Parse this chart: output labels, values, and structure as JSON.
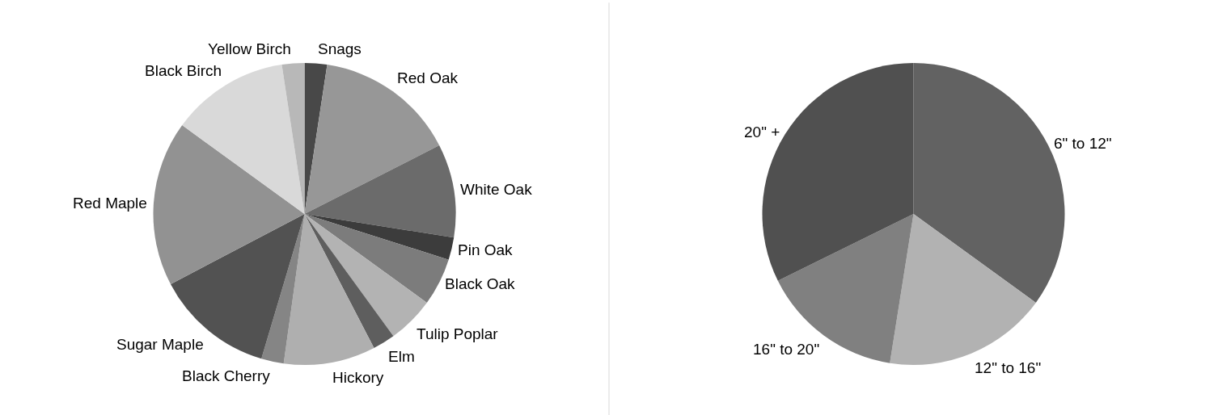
{
  "chart_data": [
    {
      "type": "pie",
      "categories": [
        "Snags",
        "Red Oak",
        "White Oak",
        "Pin Oak",
        "Black Oak",
        "Tulip Poplar",
        "Elm",
        "Hickory",
        "Black Cherry",
        "Sugar Maple",
        "Red Maple",
        "Black Birch",
        "Yellow Birch"
      ],
      "values": [
        2.4,
        15.1,
        10.0,
        2.4,
        5.1,
        5.0,
        2.4,
        9.8,
        2.4,
        12.7,
        17.7,
        12.6,
        2.4
      ],
      "colors": [
        "#484848",
        "#979797",
        "#6b6b6b",
        "#3c3c3c",
        "#7c7c7c",
        "#b3b3b3",
        "#5e5e5e",
        "#afafaf",
        "#858585",
        "#525252",
        "#929292",
        "#d9d9d9",
        "#b8b8b8"
      ]
    },
    {
      "type": "pie",
      "categories": [
        "6\" to 12\"",
        "12\" to 16\"",
        "16\" to 20\"",
        "20\" +"
      ],
      "values": [
        35.0,
        17.5,
        15.2,
        32.3
      ],
      "colors": [
        "#626262",
        "#b2b2b2",
        "#808080",
        "#505050"
      ]
    }
  ]
}
